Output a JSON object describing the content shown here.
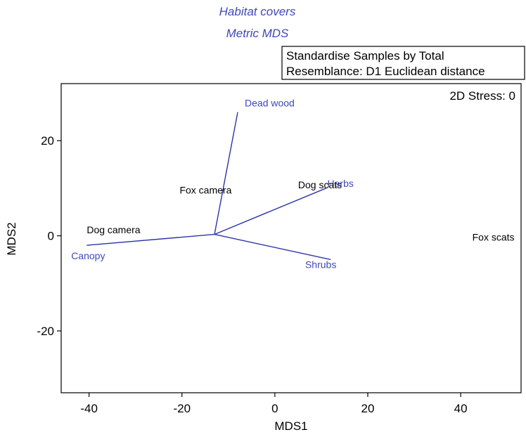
{
  "chart_data": {
    "type": "scatter",
    "title": "Habitat covers",
    "subtitle": "Metric MDS",
    "xlabel": "MDS1",
    "ylabel": "MDS2",
    "xlim": [
      -46,
      53
    ],
    "ylim": [
      -33,
      32
    ],
    "xticks": [
      -40,
      -20,
      0,
      20,
      40
    ],
    "yticks": [
      -20,
      0,
      20
    ],
    "legend": {
      "lines": [
        "Standardise Samples by Total",
        "Resemblance: D1 Euclidean distance"
      ],
      "placement": "top-right"
    },
    "stress_label": "2D Stress: 0",
    "samples": [
      {
        "label": "Dog camera",
        "x": -40.5,
        "y": 0.5
      },
      {
        "label": "Fox camera",
        "x": -20.5,
        "y": 8.9
      },
      {
        "label": "Dog scats",
        "x": 5.0,
        "y": 10.0
      },
      {
        "label": "Fox scats",
        "x": 42.5,
        "y": -1.0
      }
    ],
    "vector_origin": [
      -13,
      0.3
    ],
    "vectors": [
      {
        "label": "Dead wood",
        "x": -8,
        "y": 26
      },
      {
        "label": "Herbs",
        "x": 11,
        "y": 10
      },
      {
        "label": "Shrubs",
        "x": 12,
        "y": -5
      },
      {
        "label": "Canopy",
        "x": -40.5,
        "y": -2
      }
    ],
    "colors": {
      "accent": "#3f48b8",
      "text": "#000000",
      "vector": "#2b35a8"
    }
  }
}
